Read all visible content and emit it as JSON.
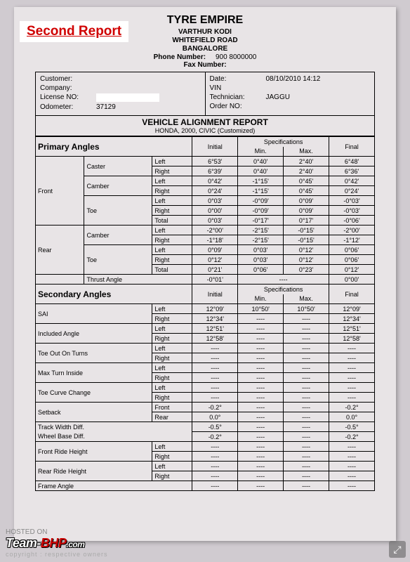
{
  "badge": "Second Report",
  "header": {
    "company": "TYRE EMPIRE",
    "addr1": "VARTHUR KODI",
    "addr2": "WHITEFIELD ROAD",
    "addr3": "BANGALORE",
    "phone_label": "Phone Number:",
    "phone": "900 8000000",
    "fax_label": "Fax Number:"
  },
  "info": {
    "customer_l": "Customer:",
    "company_l": "Company:",
    "license_l": "License NO:",
    "odo_l": "Odometer:",
    "odo_v": "37129",
    "date_l": "Date:",
    "date_v": "08/10/2010  14:12",
    "vin_l": "VIN",
    "tech_l": "Technician:",
    "tech_v": "JAGGU",
    "order_l": "Order NO:"
  },
  "report": {
    "title": "VEHICLE ALIGNMENT REPORT",
    "subtitle": "HONDA, 2000, CIVIC (Customized)"
  },
  "cols": {
    "initial": "Initial",
    "spec": "Specifications",
    "min": "Min.",
    "max": "Max.",
    "final": "Final"
  },
  "sections": {
    "primary": "Primary Angles",
    "secondary": "Secondary Angles"
  },
  "labels": {
    "front": "Front",
    "rear": "Rear",
    "caster": "Caster",
    "camber": "Camber",
    "toe": "Toe",
    "thrust": "Thrust Angle",
    "left": "Left",
    "right": "Right",
    "total": "Total",
    "sai": "SAI",
    "incl": "Included Angle",
    "toot": "Toe Out On Turns",
    "mti": "Max Turn Inside",
    "tcc": "Toe Curve Change",
    "setback": "Setback",
    "twd": "Track Width Diff.",
    "wbd": "Wheel Base Diff.",
    "frh": "Front Ride Height",
    "rrh": "Rear Ride Height",
    "fa": "Frame Angle",
    "frontside": "Front",
    "rearside": "Rear"
  },
  "d": {
    "caster_l": {
      "i": "6°53'",
      "min": "0°40'",
      "max": "2°40'",
      "f": "6°48'"
    },
    "caster_r": {
      "i": "6°39'",
      "min": "0°40'",
      "max": "2°40'",
      "f": "6°36'"
    },
    "fcam_l": {
      "i": "0°42'",
      "min": "-1°15'",
      "max": "0°45'",
      "f": "0°42'"
    },
    "fcam_r": {
      "i": "0°24'",
      "min": "-1°15'",
      "max": "0°45'",
      "f": "0°24'"
    },
    "ftoe_l": {
      "i": "0°03'",
      "min": "-0°09'",
      "max": "0°09'",
      "f": "-0°03'"
    },
    "ftoe_r": {
      "i": "0°00'",
      "min": "-0°09'",
      "max": "0°09'",
      "f": "-0°03'"
    },
    "ftoe_t": {
      "i": "0°03'",
      "min": "-0°17'",
      "max": "0°17'",
      "f": "-0°06'"
    },
    "rcam_l": {
      "i": "-2°00'",
      "min": "-2°15'",
      "max": "-0°15'",
      "f": "-2°00'"
    },
    "rcam_r": {
      "i": "-1°18'",
      "min": "-2°15'",
      "max": "-0°15'",
      "f": "-1°12'"
    },
    "rtoe_l": {
      "i": "0°09'",
      "min": "0°03'",
      "max": "0°12'",
      "f": "0°06'"
    },
    "rtoe_r": {
      "i": "0°12'",
      "min": "0°03'",
      "max": "0°12'",
      "f": "0°06'"
    },
    "rtoe_t": {
      "i": "0°21'",
      "min": "0°06'",
      "max": "0°23'",
      "f": "0°12'"
    },
    "thrust": {
      "i": "-0°01'",
      "min": "----",
      "max": "",
      "f": "0°00'"
    },
    "sai_l": {
      "i": "12°09'",
      "min": "10°50'",
      "max": "10°50'",
      "f": "12°09'"
    },
    "sai_r": {
      "i": "12°34'",
      "min": "----",
      "max": "----",
      "f": "12°34'"
    },
    "incl_l": {
      "i": "12°51'",
      "min": "----",
      "max": "----",
      "f": "12°51'"
    },
    "incl_r": {
      "i": "12°58'",
      "min": "----",
      "max": "----",
      "f": "12°58'"
    },
    "toot_l": {
      "i": "----",
      "min": "----",
      "max": "----",
      "f": "----"
    },
    "toot_r": {
      "i": "----",
      "min": "----",
      "max": "----",
      "f": "----"
    },
    "mti_l": {
      "i": "----",
      "min": "----",
      "max": "----",
      "f": "----"
    },
    "mti_r": {
      "i": "----",
      "min": "----",
      "max": "----",
      "f": "----"
    },
    "tcc_l": {
      "i": "----",
      "min": "----",
      "max": "----",
      "f": "----"
    },
    "tcc_r": {
      "i": "----",
      "min": "----",
      "max": "----",
      "f": "----"
    },
    "sb_f": {
      "i": "-0.2°",
      "min": "----",
      "max": "----",
      "f": "-0.2°"
    },
    "sb_r": {
      "i": "0.0°",
      "min": "----",
      "max": "----",
      "f": "0.0°"
    },
    "twd": {
      "i": "-0.5°",
      "min": "----",
      "max": "----",
      "f": "-0.5°"
    },
    "wbd": {
      "i": "-0.2°",
      "min": "----",
      "max": "----",
      "f": "-0.2°"
    },
    "frh_l": {
      "i": "----",
      "min": "----",
      "max": "----",
      "f": "----"
    },
    "frh_r": {
      "i": "----",
      "min": "----",
      "max": "----",
      "f": "----"
    },
    "rrh_l": {
      "i": "----",
      "min": "----",
      "max": "----",
      "f": "----"
    },
    "rrh_r": {
      "i": "----",
      "min": "----",
      "max": "----",
      "f": "----"
    },
    "fa": {
      "i": "----",
      "min": "----",
      "max": "----",
      "f": "----"
    }
  },
  "watermark": {
    "hosted": "HOSTED ON",
    "team": "Team-",
    "bhp": "BHP",
    "com": ".com",
    "copy": "copyright : respective owners"
  }
}
